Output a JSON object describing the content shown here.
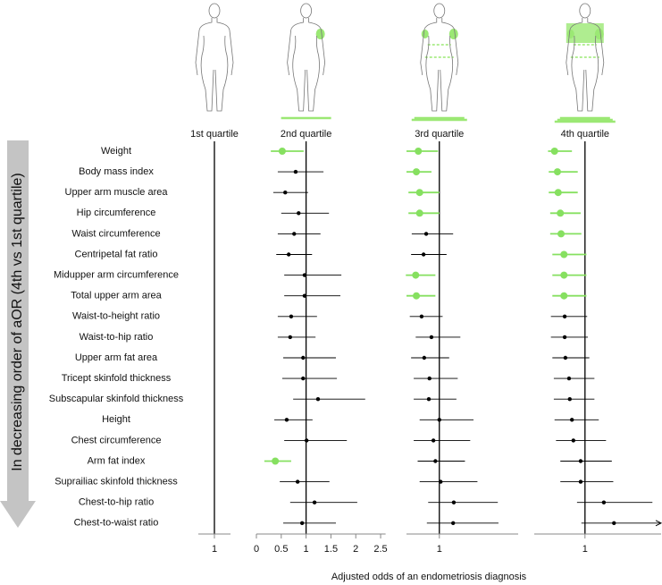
{
  "chart_data": {
    "type": "forest",
    "y_axis_label": "In decreasing order of aOR (4th vs 1st quartile)",
    "x_axis_label": "Adjusted odds of an endometriosis diagnosis",
    "categories": [
      "Weight",
      "Body mass index",
      "Upper arm muscle area",
      "Hip circumference",
      "Waist circumference",
      "Centripetal fat ratio",
      "Midupper arm circumference",
      "Total upper arm area",
      "Waist-to-height ratio",
      "Waist-to-hip ratio",
      "Upper arm fat area",
      "Tricept skinfold thickness",
      "Subscapular skinfold thickness",
      "Height",
      "Chest circumference",
      "Arm fat index",
      "Suprailiac skinfold thickness",
      "Chest-to-hip ratio",
      "Chest-to-waist ratio"
    ],
    "panels": [
      {
        "name": "1st quartile",
        "xlim": [
          0.8,
          1.2
        ],
        "xticks": [
          1
        ],
        "reference_line": 1
      },
      {
        "name": "2nd quartile",
        "xlim": [
          0,
          2.6
        ],
        "xticks": [
          0,
          0.5,
          1,
          1.5,
          2,
          2.5
        ],
        "reference_line": 1,
        "values": [
          0.52,
          0.79,
          0.58,
          0.85,
          0.76,
          0.65,
          0.97,
          0.97,
          0.7,
          0.68,
          0.94,
          0.94,
          1.24,
          0.61,
          1.01,
          0.38,
          0.83,
          1.17,
          0.92
        ],
        "lower": [
          0.29,
          0.43,
          0.34,
          0.5,
          0.43,
          0.4,
          0.56,
          0.56,
          0.43,
          0.43,
          0.54,
          0.52,
          0.74,
          0.36,
          0.56,
          0.16,
          0.47,
          0.68,
          0.54
        ],
        "upper": [
          0.95,
          1.35,
          1.04,
          1.46,
          1.29,
          1.12,
          1.71,
          1.69,
          1.22,
          1.19,
          1.6,
          1.62,
          2.19,
          1.13,
          1.82,
          0.7,
          1.47,
          2.03,
          1.6
        ],
        "colors": [
          "#86e060",
          "#000000",
          "#000000",
          "#000000",
          "#000000",
          "#000000",
          "#000000",
          "#000000",
          "#000000",
          "#000000",
          "#000000",
          "#000000",
          "#000000",
          "#000000",
          "#000000",
          "#86e060",
          "#000000",
          "#000000",
          "#000000"
        ]
      },
      {
        "name": "3rd quartile",
        "xlim": [
          0.5,
          2.2
        ],
        "xticks": [
          1
        ],
        "reference_line": 1,
        "values": [
          0.68,
          0.65,
          0.7,
          0.7,
          0.8,
          0.76,
          0.64,
          0.65,
          0.73,
          0.88,
          0.77,
          0.85,
          0.84,
          1.0,
          0.91,
          0.94,
          1.02,
          1.22,
          1.21
        ],
        "lower": [
          0.5,
          0.5,
          0.53,
          0.53,
          0.58,
          0.57,
          0.49,
          0.5,
          0.55,
          0.64,
          0.57,
          0.61,
          0.61,
          0.7,
          0.61,
          0.67,
          0.7,
          0.83,
          0.81
        ],
        "upper": [
          0.98,
          0.88,
          1.0,
          1.0,
          1.21,
          1.11,
          0.94,
          0.94,
          1.05,
          1.32,
          1.15,
          1.28,
          1.26,
          1.52,
          1.47,
          1.39,
          1.58,
          1.89,
          1.9
        ],
        "colors": [
          "#86e060",
          "#86e060",
          "#86e060",
          "#86e060",
          "#000000",
          "#000000",
          "#86e060",
          "#86e060",
          "#000000",
          "#000000",
          "#000000",
          "#000000",
          "#000000",
          "#000000",
          "#000000",
          "#000000",
          "#000000",
          "#000000",
          "#000000"
        ]
      },
      {
        "name": "4th quartile",
        "xlim": [
          0.3,
          2.05
        ],
        "xticks": [
          1
        ],
        "reference_line": 1,
        "values": [
          0.58,
          0.62,
          0.63,
          0.66,
          0.67,
          0.71,
          0.71,
          0.71,
          0.72,
          0.72,
          0.73,
          0.78,
          0.79,
          0.82,
          0.84,
          0.94,
          0.94,
          1.26,
          1.4
        ],
        "lower": [
          0.49,
          0.5,
          0.5,
          0.52,
          0.52,
          0.55,
          0.55,
          0.55,
          0.53,
          0.53,
          0.55,
          0.57,
          0.57,
          0.58,
          0.6,
          0.66,
          0.66,
          0.89,
          0.95
        ],
        "upper": [
          0.82,
          0.9,
          0.9,
          0.94,
          0.95,
          1.02,
          1.02,
          1.02,
          1.03,
          1.04,
          1.06,
          1.13,
          1.13,
          1.19,
          1.29,
          1.37,
          1.39,
          1.93,
          2.3
        ],
        "colors": [
          "#86e060",
          "#86e060",
          "#86e060",
          "#86e060",
          "#86e060",
          "#86e060",
          "#86e060",
          "#86e060",
          "#000000",
          "#000000",
          "#000000",
          "#000000",
          "#000000",
          "#000000",
          "#000000",
          "#000000",
          "#000000",
          "#000000",
          "#000000"
        ]
      }
    ]
  }
}
